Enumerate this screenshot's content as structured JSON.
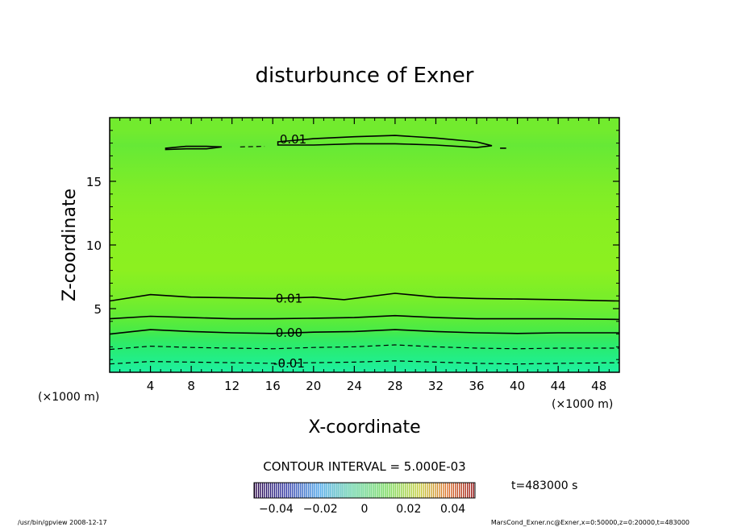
{
  "chart_data": {
    "type": "contour",
    "title": "disturbunce of Exner",
    "xlabel": "X-coordinate",
    "ylabel": "Z-coordinate",
    "x_unit": "(×1000 m)",
    "y_unit": "(×1000 m)",
    "xlim": [
      0,
      50
    ],
    "ylim": [
      0,
      20
    ],
    "x_ticks": [
      4,
      8,
      12,
      16,
      20,
      24,
      28,
      32,
      36,
      40,
      44,
      48
    ],
    "y_ticks": [
      5,
      10,
      15
    ],
    "contour_interval_label": "CONTOUR INTERVAL = 5.000E-03",
    "contour_labels": [
      {
        "text": "0.01",
        "x": 18.0,
        "z": 18.3
      },
      {
        "text": "0.01",
        "x": 17.6,
        "z": 5.8
      },
      {
        "text": "0.00",
        "x": 17.6,
        "z": 3.1
      },
      {
        "text": "-0.01",
        "x": 17.6,
        "z": 0.7
      }
    ],
    "contour_lines": [
      {
        "level": 0.01,
        "style": "solid",
        "points": [
          [
            0,
            5.6
          ],
          [
            4,
            6.1
          ],
          [
            8,
            5.9
          ],
          [
            12,
            5.85
          ],
          [
            16,
            5.8
          ],
          [
            20,
            5.9
          ],
          [
            23,
            5.7
          ],
          [
            28,
            6.2
          ],
          [
            32,
            5.9
          ],
          [
            36,
            5.8
          ],
          [
            40,
            5.75
          ],
          [
            44,
            5.7
          ],
          [
            50,
            5.6
          ]
        ]
      },
      {
        "level": 0.005,
        "style": "solid",
        "points": [
          [
            0,
            4.2
          ],
          [
            4,
            4.4
          ],
          [
            8,
            4.3
          ],
          [
            12,
            4.2
          ],
          [
            16,
            4.2
          ],
          [
            20,
            4.25
          ],
          [
            24,
            4.3
          ],
          [
            28,
            4.45
          ],
          [
            32,
            4.3
          ],
          [
            36,
            4.2
          ],
          [
            40,
            4.2
          ],
          [
            44,
            4.2
          ],
          [
            50,
            4.15
          ]
        ]
      },
      {
        "level": 0.0,
        "style": "solid",
        "points": [
          [
            0,
            3.0
          ],
          [
            4,
            3.35
          ],
          [
            8,
            3.2
          ],
          [
            12,
            3.1
          ],
          [
            16,
            3.05
          ],
          [
            20,
            3.15
          ],
          [
            24,
            3.2
          ],
          [
            28,
            3.35
          ],
          [
            32,
            3.2
          ],
          [
            36,
            3.1
          ],
          [
            40,
            3.05
          ],
          [
            44,
            3.1
          ],
          [
            50,
            3.1
          ]
        ]
      },
      {
        "level": -0.005,
        "style": "dashed",
        "points": [
          [
            0,
            1.8
          ],
          [
            4,
            2.05
          ],
          [
            8,
            1.95
          ],
          [
            12,
            1.9
          ],
          [
            16,
            1.85
          ],
          [
            20,
            1.95
          ],
          [
            24,
            2.0
          ],
          [
            28,
            2.15
          ],
          [
            32,
            2.0
          ],
          [
            36,
            1.9
          ],
          [
            40,
            1.85
          ],
          [
            44,
            1.9
          ],
          [
            50,
            1.9
          ]
        ]
      },
      {
        "level": -0.01,
        "style": "dashed",
        "points": [
          [
            0,
            0.65
          ],
          [
            4,
            0.85
          ],
          [
            8,
            0.8
          ],
          [
            12,
            0.75
          ],
          [
            16,
            0.7
          ],
          [
            20,
            0.75
          ],
          [
            24,
            0.8
          ],
          [
            28,
            0.9
          ],
          [
            32,
            0.8
          ],
          [
            36,
            0.7
          ],
          [
            40,
            0.65
          ],
          [
            44,
            0.7
          ],
          [
            50,
            0.75
          ]
        ]
      },
      {
        "level": 0.01,
        "style": "solid",
        "closed": true,
        "points": [
          [
            16.5,
            18.1
          ],
          [
            20,
            18.35
          ],
          [
            24,
            18.5
          ],
          [
            28,
            18.6
          ],
          [
            32,
            18.4
          ],
          [
            36,
            18.1
          ],
          [
            37.5,
            17.8
          ],
          [
            36,
            17.65
          ],
          [
            32,
            17.85
          ],
          [
            28,
            17.95
          ],
          [
            24,
            17.95
          ],
          [
            20,
            17.85
          ],
          [
            16.5,
            17.85
          ]
        ]
      },
      {
        "level": 0.01,
        "style": "solid",
        "closed": true,
        "points": [
          [
            5.5,
            17.6
          ],
          [
            7.5,
            17.75
          ],
          [
            9.5,
            17.75
          ],
          [
            11,
            17.7
          ],
          [
            9.5,
            17.55
          ],
          [
            7.5,
            17.55
          ],
          [
            5.5,
            17.5
          ]
        ]
      },
      {
        "level": 0.01,
        "style": "dashed",
        "points": [
          [
            12.8,
            17.7
          ],
          [
            15.2,
            17.75
          ]
        ]
      },
      {
        "level": 0.01,
        "style": "solid",
        "points": [
          [
            38.3,
            17.6
          ],
          [
            38.9,
            17.6
          ]
        ]
      }
    ],
    "fill_bands": [
      {
        "z": 0.0,
        "color": "#1ef0a0"
      },
      {
        "z": 0.9,
        "color": "#22ee8a"
      },
      {
        "z": 1.9,
        "color": "#28ec72"
      },
      {
        "z": 2.7,
        "color": "#35ea5e"
      },
      {
        "z": 3.4,
        "color": "#4ceb44"
      },
      {
        "z": 4.4,
        "color": "#62ec36"
      },
      {
        "z": 5.8,
        "color": "#78ee2a"
      },
      {
        "z": 8.0,
        "color": "#8cf020"
      },
      {
        "z": 12.0,
        "color": "#88ef22"
      },
      {
        "z": 14.5,
        "color": "#7eed28"
      },
      {
        "z": 16.5,
        "color": "#70eb30"
      },
      {
        "z": 17.8,
        "color": "#66e936"
      },
      {
        "z": 19.0,
        "color": "#72eb2e"
      },
      {
        "z": 20.0,
        "color": "#72eb2e"
      }
    ],
    "colorbar": {
      "range": [
        -0.05,
        0.05
      ],
      "tick_values": [
        -0.04,
        -0.02,
        0,
        0.02,
        0.04
      ],
      "tick_labels": [
        "−0.04",
        "−0.02",
        "0",
        "0.02",
        "0.04"
      ]
    },
    "time_label": "t=483000 s",
    "footer_left": "/usr/bin/gpview   2008-12-17",
    "footer_right": "MarsCond_Exner.nc@Exner,x=0:50000,z=0:20000,t=483000"
  }
}
